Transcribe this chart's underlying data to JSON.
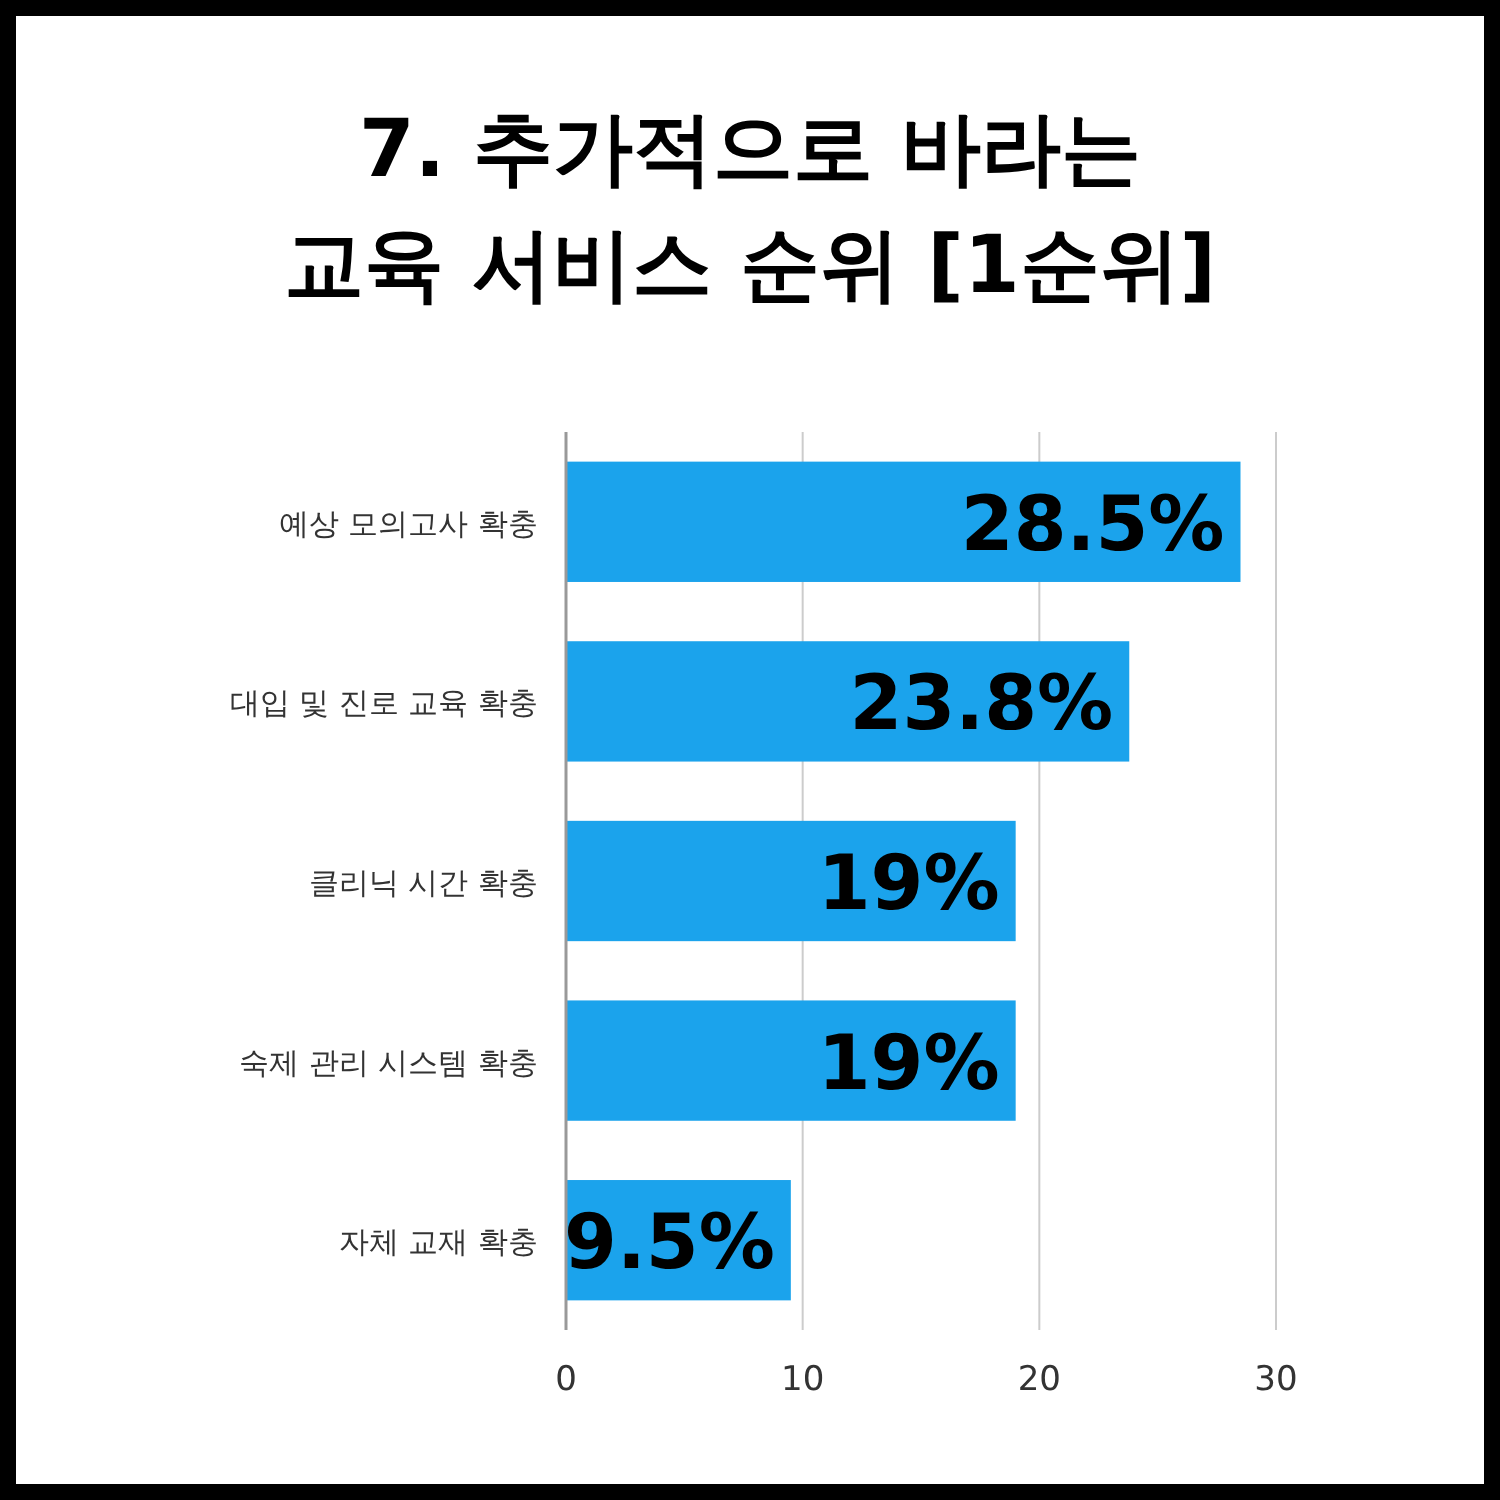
{
  "chart_data": {
    "type": "bar",
    "orientation": "horizontal",
    "title": "7. 추가적으로 바라는\n교육 서비스 순위 [1순위]",
    "categories": [
      "예상 모의고사 확충",
      "대입 및 진로 교육 확충",
      "클리닉 시간 확충",
      "숙제 관리 시스템 확충",
      "자체 교재 확충"
    ],
    "values": [
      28.5,
      23.8,
      19,
      19,
      9.5
    ],
    "value_labels": [
      "28.5%",
      "23.8%",
      "19%",
      "19%",
      "9.5%"
    ],
    "color": "#1ba3ec",
    "xlim": [
      0,
      30
    ],
    "xticks": [
      0,
      10,
      20,
      30
    ],
    "grid": "x"
  }
}
